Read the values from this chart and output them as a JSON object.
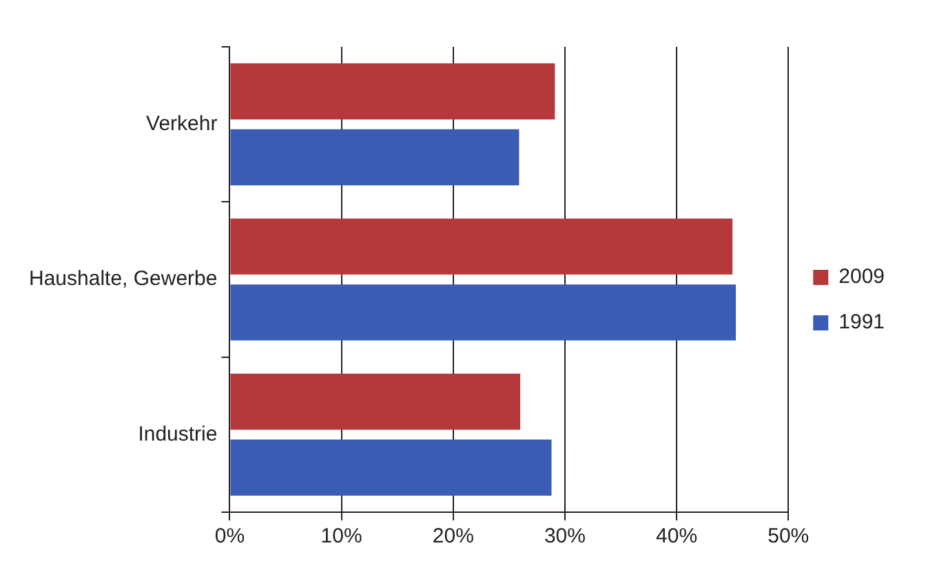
{
  "chart_data": {
    "type": "bar",
    "orientation": "horizontal",
    "categories": [
      "Verkehr",
      "Haushalte, Gewerbe",
      "Industrie"
    ],
    "series": [
      {
        "name": "2009",
        "color": "#b5393a",
        "values": [
          29.1,
          45,
          26
        ]
      },
      {
        "name": "1991",
        "color": "#3a5cb5",
        "values": [
          25.9,
          45.3,
          28.8
        ]
      }
    ],
    "xlim": [
      0,
      50
    ],
    "xticks": [
      {
        "value": 0,
        "label": "0%"
      },
      {
        "value": 10,
        "label": "10%"
      },
      {
        "value": 20,
        "label": "20%"
      },
      {
        "value": 30,
        "label": "30%"
      },
      {
        "value": 40,
        "label": "40%"
      },
      {
        "value": 50,
        "label": "50%"
      }
    ],
    "grid": "x",
    "legend": "right"
  }
}
